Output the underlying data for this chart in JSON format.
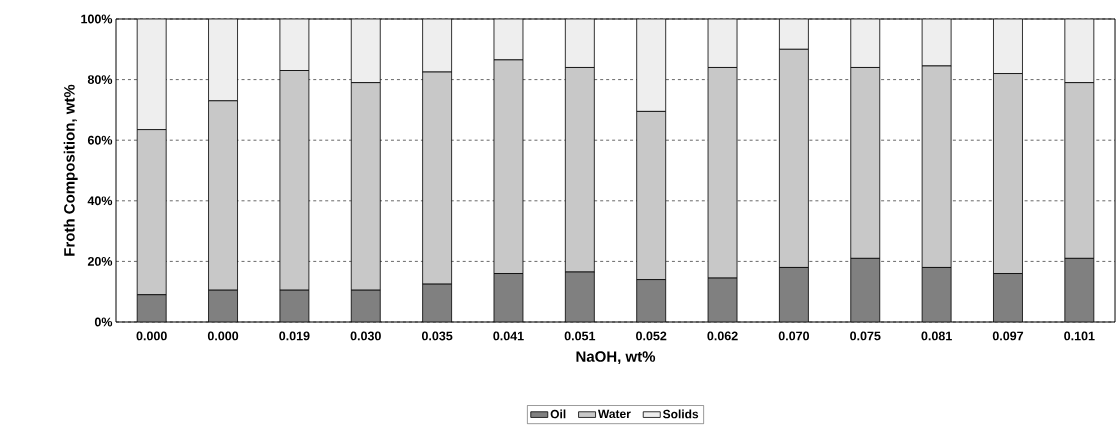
{
  "chart_data": {
    "type": "bar",
    "stacked": true,
    "xlabel": "NaOH, wt%",
    "ylabel": "Froth Composition, wt%",
    "categories": [
      "0.000",
      "0.000",
      "0.019",
      "0.030",
      "0.035",
      "0.041",
      "0.051",
      "0.052",
      "0.062",
      "0.070",
      "0.075",
      "0.081",
      "0.097",
      "0.101"
    ],
    "series": [
      {
        "name": "Oil",
        "color": "#808080",
        "values": [
          9,
          10.5,
          10.5,
          10.5,
          12.5,
          16,
          16.5,
          14,
          14.5,
          18,
          21,
          18,
          16,
          21
        ]
      },
      {
        "name": "Water",
        "color": "#c8c8c8",
        "values": [
          54.5,
          62.5,
          72.5,
          68.5,
          70,
          70.5,
          67.5,
          55.5,
          69.5,
          72,
          63,
          66.5,
          66,
          58
        ]
      },
      {
        "name": "Solids",
        "color": "#eeeeee",
        "values": [
          36.5,
          27,
          17,
          21,
          17.5,
          13.5,
          16,
          30.5,
          16,
          10,
          16,
          15.5,
          18,
          21
        ]
      }
    ],
    "ylim": [
      0,
      100
    ],
    "yticks": [
      {
        "value": 0,
        "label": "0%"
      },
      {
        "value": 20,
        "label": "20%"
      },
      {
        "value": 40,
        "label": "40%"
      },
      {
        "value": 60,
        "label": "60%"
      },
      {
        "value": 80,
        "label": "80%"
      },
      {
        "value": 100,
        "label": "100%"
      }
    ],
    "grid": "y",
    "legend": "bottom"
  }
}
